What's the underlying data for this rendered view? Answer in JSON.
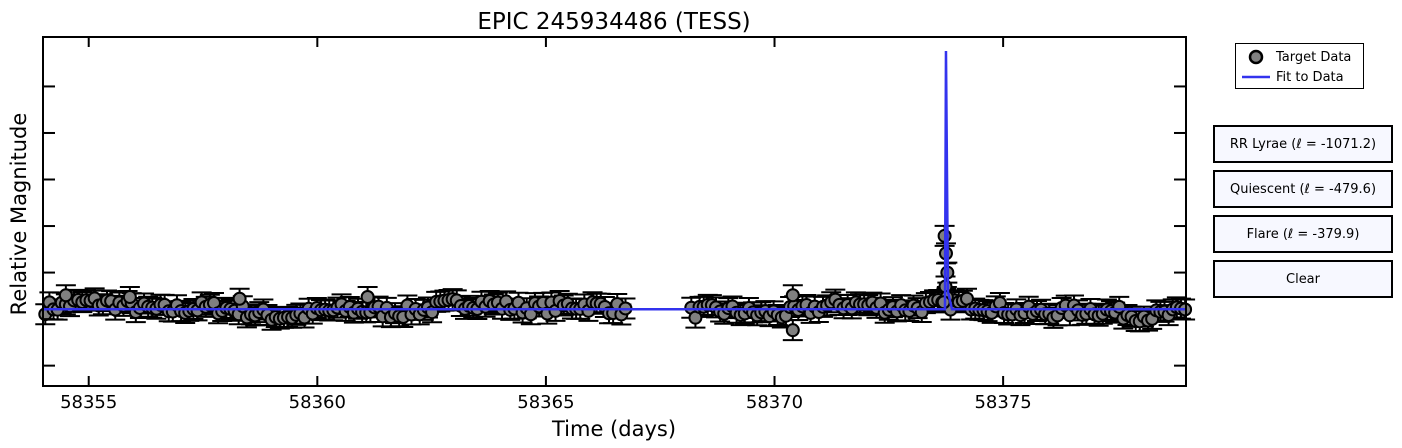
{
  "chart_data": {
    "type": "scatter",
    "title": "EPIC 245934486 (TESS)",
    "xlabel": "Time (days)",
    "ylabel": "Relative Magnitude",
    "xlim": [
      58354.0,
      58379.0
    ],
    "xticks": [
      58355,
      58360,
      58365,
      58370,
      58375
    ],
    "ylim": [
      0.0,
      1.0
    ],
    "baseline": 0.22,
    "gap": [
      58366.8,
      58368.1
    ],
    "flare": {
      "x": 58373.75,
      "peak": 0.96,
      "points": [
        {
          "x": 58373.72,
          "y": 0.43
        },
        {
          "x": 58373.75,
          "y": 0.38
        },
        {
          "x": 58373.78,
          "y": 0.325
        },
        {
          "x": 58373.74,
          "y": 0.285
        },
        {
          "x": 58373.77,
          "y": 0.255
        },
        {
          "x": 58373.7,
          "y": 0.24
        }
      ]
    },
    "outliers": [
      {
        "x": 58370.4,
        "y": 0.16
      },
      {
        "x": 58354.5,
        "y": 0.26
      },
      {
        "x": 58355.9,
        "y": 0.255
      },
      {
        "x": 58361.1,
        "y": 0.255
      },
      {
        "x": 58358.3,
        "y": 0.25
      },
      {
        "x": 58370.4,
        "y": 0.26
      }
    ],
    "legend": [
      {
        "label": "Target Data",
        "marker": "circle",
        "color": "#808080"
      },
      {
        "label": "Fit to Data",
        "marker": "line",
        "color": "#3333ee"
      }
    ],
    "colors": {
      "data": "#808080",
      "edge": "#000000",
      "fit": "#3333ee"
    }
  },
  "buttons": [
    {
      "label": "RR Lyrae (ℓ = -1071.2)"
    },
    {
      "label": "Quiescent (ℓ = -479.6)"
    },
    {
      "label": "Flare (ℓ = -379.9)"
    },
    {
      "label": "Clear"
    }
  ]
}
